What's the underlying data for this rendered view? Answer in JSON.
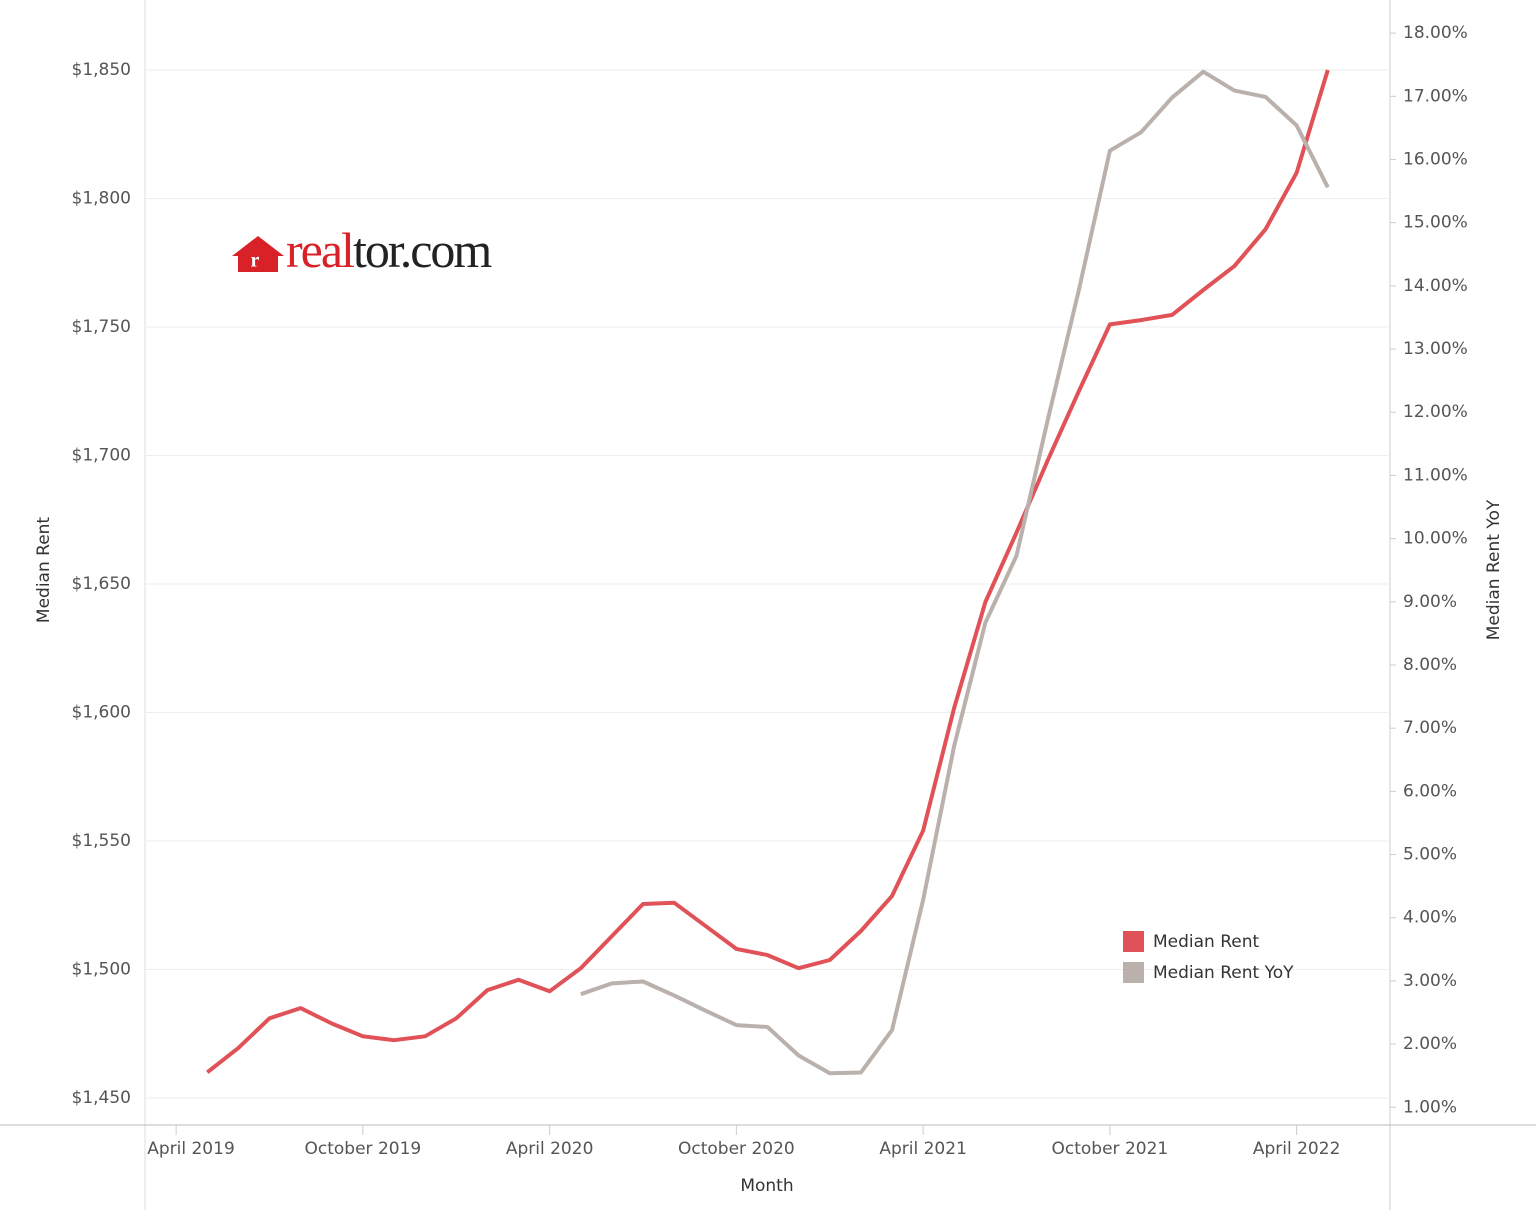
{
  "chart_data": {
    "type": "line",
    "logo": [
      "real",
      "tor.com"
    ],
    "xlabel": "Month",
    "ylabel": "Median Rent",
    "y2label": "Median Rent YoY",
    "x": [
      "2019-05",
      "2019-06",
      "2019-07",
      "2019-08",
      "2019-09",
      "2019-10",
      "2019-11",
      "2019-12",
      "2020-01",
      "2020-02",
      "2020-03",
      "2020-04",
      "2020-05",
      "2020-06",
      "2020-07",
      "2020-08",
      "2020-09",
      "2020-10",
      "2020-11",
      "2020-12",
      "2021-01",
      "2021-02",
      "2021-03",
      "2021-04",
      "2021-05",
      "2021-06",
      "2021-07",
      "2021-08",
      "2021-09",
      "2021-10",
      "2021-11",
      "2021-12",
      "2022-01",
      "2022-02",
      "2022-03",
      "2022-04",
      "2022-05"
    ],
    "series": [
      {
        "name": "Median Rent",
        "color": "#e05257",
        "values": [
          1460,
          1469.5,
          1481,
          1485,
          1479,
          1474,
          1472.5,
          1474,
          1481,
          1492,
          1496,
          1491.5,
          1500.5,
          1513,
          1525.5,
          1526,
          1517,
          1508,
          1505.6,
          1500.5,
          1503.7,
          1515,
          1528.6,
          1554,
          1602,
          1643,
          1670,
          1698,
          1725,
          1751,
          1752.7,
          1754.7,
          1764.4,
          1773.7,
          1788,
          1810,
          1850
        ]
      },
      {
        "name": "Median Rent YoY",
        "color": "#bab0ac",
        "axis": "y2",
        "values": [
          null,
          null,
          null,
          null,
          null,
          null,
          null,
          null,
          null,
          null,
          null,
          null,
          2.79,
          2.96,
          2.99,
          2.77,
          2.53,
          2.3,
          2.27,
          1.82,
          1.54,
          1.55,
          2.22,
          4.28,
          6.73,
          8.67,
          9.73,
          11.87,
          13.93,
          16.14,
          16.43,
          16.98,
          17.39,
          17.09,
          16.99,
          16.54,
          15.56
        ]
      }
    ],
    "xlim": [
      "2019-03",
      "2022-07"
    ],
    "xticks": [
      {
        "value": "2019-04",
        "label": "April 2019"
      },
      {
        "value": "2019-10",
        "label": "October 2019"
      },
      {
        "value": "2020-04",
        "label": "April 2020"
      },
      {
        "value": "2020-10",
        "label": "October 2020"
      },
      {
        "value": "2021-04",
        "label": "April 2021"
      },
      {
        "value": "2021-10",
        "label": "October 2021"
      },
      {
        "value": "2022-04",
        "label": "April 2022"
      }
    ],
    "ylim": [
      1440,
      1870
    ],
    "yticks": [
      {
        "value": 1450,
        "label": "$1,450"
      },
      {
        "value": 1500,
        "label": "$1,500"
      },
      {
        "value": 1550,
        "label": "$1,550"
      },
      {
        "value": 1600,
        "label": "$1,600"
      },
      {
        "value": 1650,
        "label": "$1,650"
      },
      {
        "value": 1700,
        "label": "$1,700"
      },
      {
        "value": 1750,
        "label": "$1,750"
      },
      {
        "value": 1800,
        "label": "$1,800"
      },
      {
        "value": 1850,
        "label": "$1,850"
      }
    ],
    "y2lim": [
      0.74,
      18.23
    ],
    "y2ticks": [
      {
        "value": 1,
        "label": "1.00%"
      },
      {
        "value": 2,
        "label": "2.00%"
      },
      {
        "value": 3,
        "label": "3.00%"
      },
      {
        "value": 4,
        "label": "4.00%"
      },
      {
        "value": 5,
        "label": "5.00%"
      },
      {
        "value": 6,
        "label": "6.00%"
      },
      {
        "value": 7,
        "label": "7.00%"
      },
      {
        "value": 8,
        "label": "8.00%"
      },
      {
        "value": 9,
        "label": "9.00%"
      },
      {
        "value": 10,
        "label": "10.00%"
      },
      {
        "value": 11,
        "label": "11.00%"
      },
      {
        "value": 12,
        "label": "12.00%"
      },
      {
        "value": 13,
        "label": "13.00%"
      },
      {
        "value": 14,
        "label": "14.00%"
      },
      {
        "value": 15,
        "label": "15.00%"
      },
      {
        "value": 16,
        "label": "16.00%"
      },
      {
        "value": 17,
        "label": "17.00%"
      },
      {
        "value": 18,
        "label": "18.00%"
      }
    ],
    "grid": true,
    "legend": "lower right"
  }
}
